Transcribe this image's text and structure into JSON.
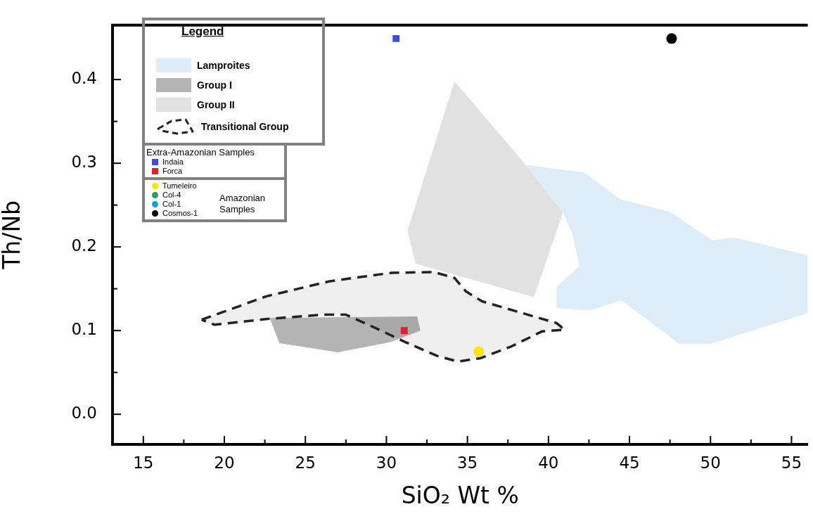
{
  "chart_data": {
    "type": "scatter",
    "xlabel": "SiO₂ Wt %",
    "ylabel": "Th/Nb",
    "legend_title": "Legend",
    "xlim": [
      13.1,
      56
    ],
    "xticks": [
      15,
      {
        "value": 17.5,
        "label": null
      },
      20,
      {
        "value": 22.5,
        "label": null
      },
      25,
      {
        "value": 27.5,
        "label": null
      },
      30,
      {
        "value": 32.5,
        "label": null
      },
      35,
      {
        "value": 37.5,
        "label": null
      },
      40,
      {
        "value": 42.5,
        "label": null
      },
      45,
      {
        "value": 47.5,
        "label": null
      },
      50,
      {
        "value": 52.5,
        "label": null
      },
      55
    ],
    "ylim": [
      -0.036,
      0.465
    ],
    "yticks": [
      {
        "value": 0,
        "label": "0.0"
      },
      {
        "value": 0.05,
        "label": null
      },
      0.1,
      {
        "value": 0.15,
        "label": null
      },
      0.2,
      {
        "value": 0.25,
        "label": null
      },
      0.3,
      {
        "value": 0.35,
        "label": null
      },
      0.4
    ],
    "grid": false,
    "legend": "top left",
    "annotations": [
      "Extra-Amazonian Samples",
      "Amazonian Samples"
    ],
    "series": [
      {
        "name": "Lamproites",
        "type": "area",
        "color": "#deecf8",
        "x": [
          38.6,
          42.2,
          44.4,
          47.5,
          50.1,
          51.5,
          56.0,
          56.0,
          50.0,
          48.1,
          44.5,
          42.5,
          40.5,
          40.5,
          41.9,
          41.5,
          40.9
        ],
        "values": [
          0.298,
          0.289,
          0.257,
          0.242,
          0.208,
          0.211,
          0.19,
          0.121,
          0.084,
          0.084,
          0.136,
          0.124,
          0.127,
          0.152,
          0.177,
          0.214,
          0.241
        ]
      },
      {
        "name": "Group I",
        "type": "area",
        "color": "#b4b4b4",
        "x": [
          22.8,
          31.9,
          32.1,
          30.2,
          27.0,
          23.4
        ],
        "values": [
          0.115,
          0.117,
          0.1,
          0.086,
          0.074,
          0.085
        ]
      },
      {
        "name": "Group II",
        "type": "area",
        "color": "#e1e1e1",
        "x": [
          34.2,
          38.6,
          40.9,
          39.1,
          31.8,
          31.3
        ],
        "values": [
          0.398,
          0.298,
          0.241,
          0.14,
          0.18,
          0.219
        ]
      },
      {
        "name": "Transitional Group",
        "type": "area",
        "line_style": "dashed",
        "color": "#222222",
        "x": [
          18.6,
          22.6,
          26.5,
          30.3,
          32.9,
          34.2,
          34.9,
          35.9,
          40.5,
          41.0,
          39.6,
          37.7,
          35.8,
          34.4,
          33.1,
          31.2,
          29.0,
          27.5,
          26.1,
          22.7,
          19.4,
          18.6
        ],
        "values": [
          0.113,
          0.141,
          0.159,
          0.169,
          0.17,
          0.163,
          0.147,
          0.135,
          0.109,
          0.101,
          0.099,
          0.081,
          0.067,
          0.063,
          0.07,
          0.086,
          0.106,
          0.119,
          0.119,
          0.114,
          0.107,
          0.113
        ]
      },
      {
        "name": "Indaia",
        "type": "scatter",
        "marker": "square",
        "color": "#3f4fcf",
        "x": [
          30.6
        ],
        "values": [
          0.449
        ]
      },
      {
        "name": "Forca",
        "type": "scatter",
        "marker": "square",
        "color": "#e0202a",
        "x": [
          31.1
        ],
        "values": [
          0.1
        ]
      },
      {
        "name": "Tumeleiro",
        "type": "scatter",
        "marker": "circle",
        "color": "#f5e60f",
        "x": [
          35.7
        ],
        "values": [
          0.075
        ]
      },
      {
        "name": "Col-4",
        "type": "scatter",
        "marker": "circle",
        "color": "#2e9e5a"
      },
      {
        "name": "Col-1",
        "type": "scatter",
        "marker": "circle",
        "color": "#1fa0c8"
      },
      {
        "name": "Cosmos-1",
        "type": "scatter",
        "marker": "circle",
        "color": "#000000",
        "x": [
          47.6
        ],
        "values": [
          0.449
        ]
      }
    ]
  }
}
